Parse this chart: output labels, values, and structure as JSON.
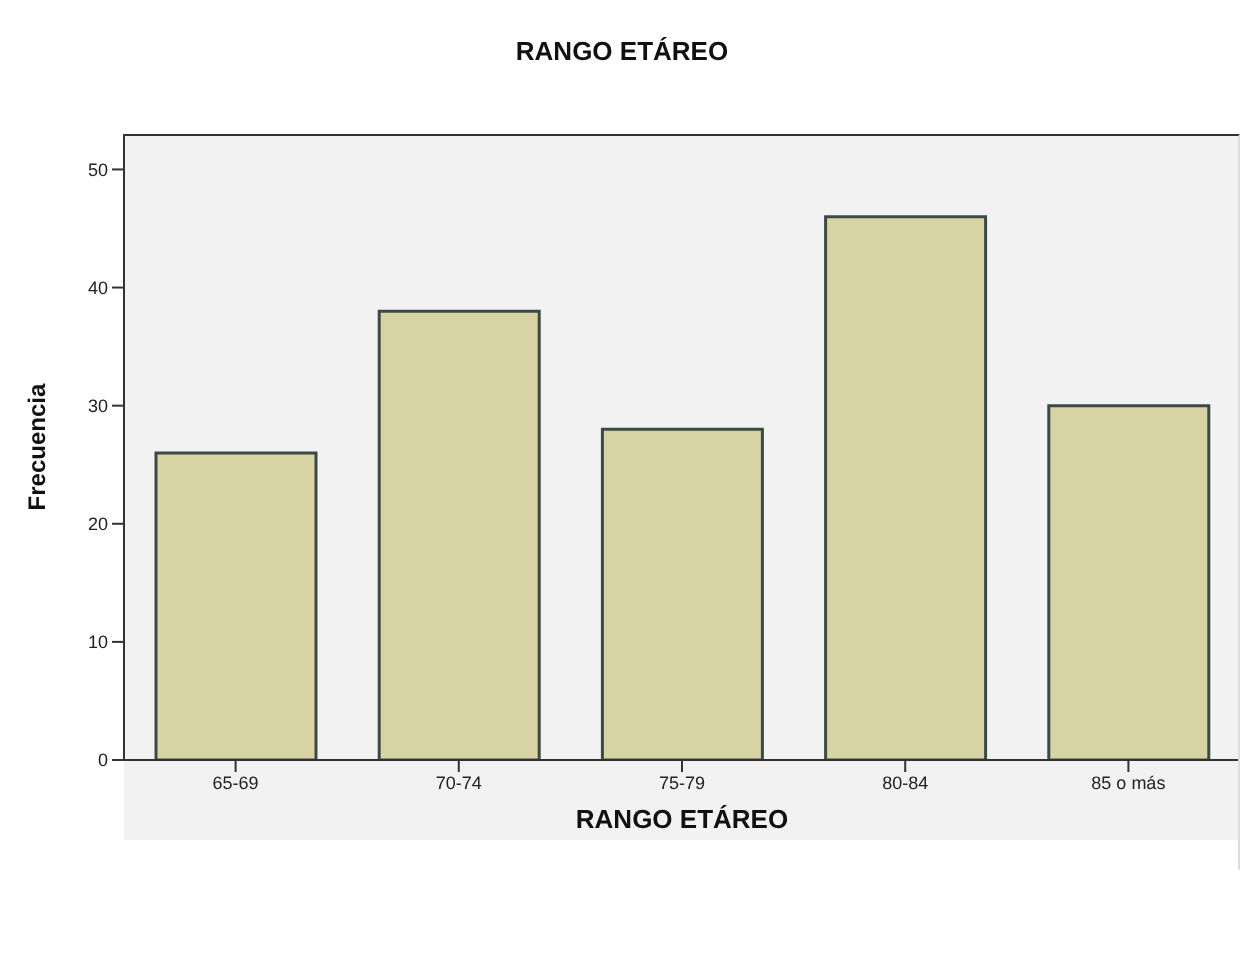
{
  "chart_data": {
    "type": "bar",
    "title": "RANGO ETÁREO",
    "xlabel": "RANGO ETÁREO",
    "ylabel": "Frecuencia",
    "categories": [
      "65-69",
      "70-74",
      "75-79",
      "80-84",
      "85 o más"
    ],
    "values": [
      26,
      38,
      28,
      46,
      30
    ],
    "color": "#d8d3a4",
    "ylim": [
      0,
      53
    ],
    "yticks": [
      0,
      10,
      20,
      30,
      40,
      50
    ],
    "grid": false
  }
}
